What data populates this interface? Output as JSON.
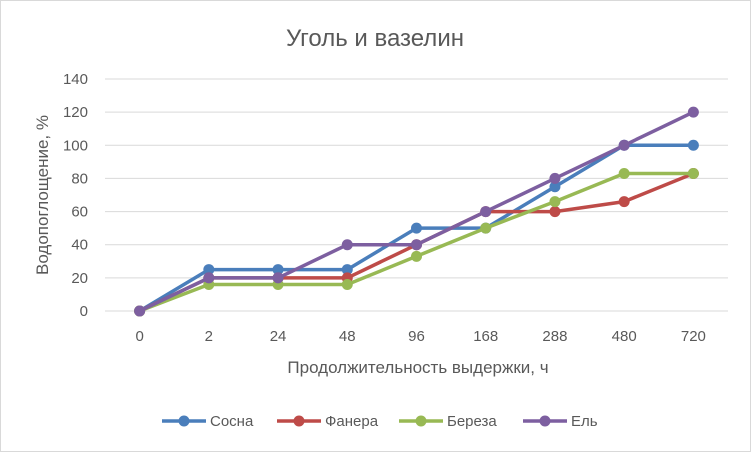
{
  "chart_data": {
    "type": "line",
    "title": "Уголь и вазелин",
    "xlabel": "Продолжительность выдержки, ч",
    "ylabel": "Водопоглощение, %",
    "categories": [
      "0",
      "2",
      "24",
      "48",
      "96",
      "168",
      "288",
      "480",
      "720"
    ],
    "ylim": [
      0,
      140
    ],
    "yticks": [
      0,
      20,
      40,
      60,
      80,
      100,
      120,
      140
    ],
    "grid": true,
    "legend_position": "bottom",
    "series": [
      {
        "name": "Сосна",
        "color": "#4a7ebb",
        "values": [
          0,
          25,
          25,
          25,
          50,
          50,
          75,
          100,
          100
        ]
      },
      {
        "name": "Фанера",
        "color": "#be4b48",
        "values": [
          0,
          20,
          20,
          20,
          40,
          60,
          60,
          66,
          83
        ]
      },
      {
        "name": "Береза",
        "color": "#98b954",
        "values": [
          0,
          16,
          16,
          16,
          33,
          50,
          66,
          83,
          83
        ]
      },
      {
        "name": "Ель",
        "color": "#7d5fa0",
        "values": [
          0,
          20,
          20,
          40,
          40,
          60,
          80,
          100,
          120
        ]
      }
    ]
  }
}
